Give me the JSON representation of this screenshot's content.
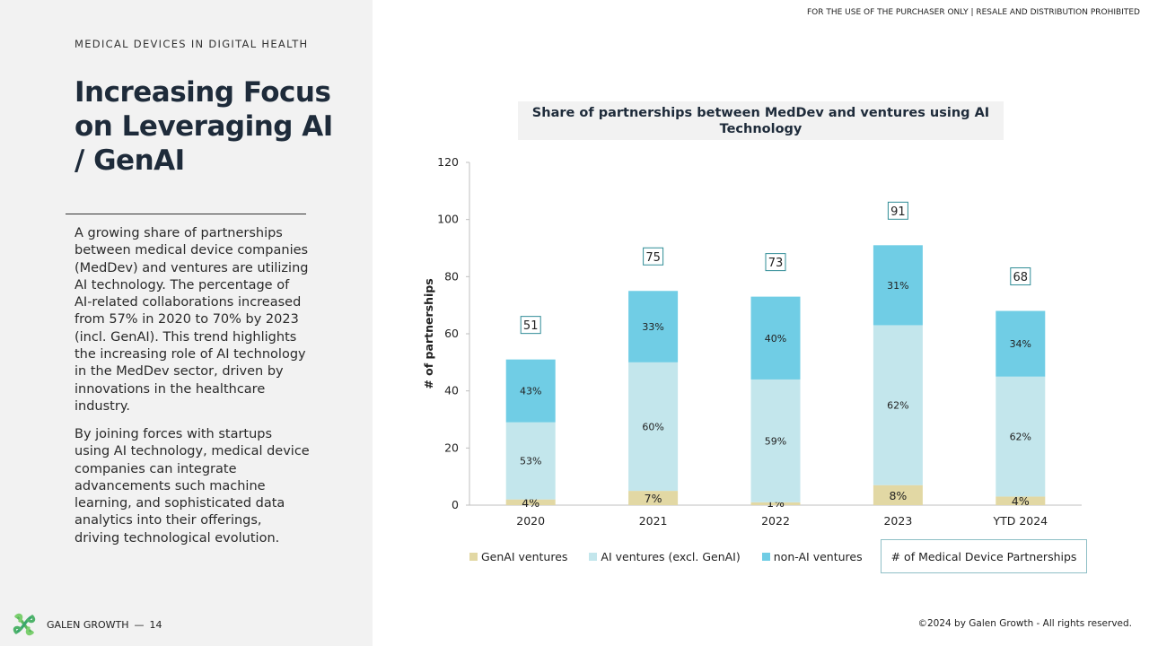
{
  "header": {
    "notice": "FOR THE USE OF THE PURCHASER ONLY | RESALE AND DISTRIBUTION PROHIBITED"
  },
  "left": {
    "kicker": "MEDICAL DEVICES IN DIGITAL HEALTH",
    "title": "Increasing Focus on Leveraging AI / GenAI",
    "paragraph1": "A growing share of partnerships between medical device companies (MedDev) and ventures are utilizing AI technology. The percentage of AI-related collaborations increased from 57% in 2020 to 70% by 2023 (incl. GenAI). This trend highlights the increasing role of AI technology in the MedDev sector, driven by innovations in the healthcare industry.",
    "paragraph2": "By joining forces with startups using AI technology, medical device companies can integrate advancements such machine learning, and sophisticated data analytics into their offerings, driving technological evolution."
  },
  "footer": {
    "brand": "GALEN GROWTH",
    "separator": "—",
    "page": "14",
    "copyright": "©2024 by Galen Growth  - All rights reserved."
  },
  "colors": {
    "left_bg": "#f2f2f2",
    "genai": "#e2d8a4",
    "ai_excl": "#c3e6ec",
    "non_ai": "#70cde5",
    "total_box_border": "#2f8c96"
  },
  "chart_data": {
    "type": "bar",
    "stacked": true,
    "title": "Share of partnerships between MedDev and ventures using AI Technology",
    "ylabel": "# of partnerships",
    "xlabel": "",
    "ylim": [
      0,
      120
    ],
    "yticks": [
      0,
      20,
      40,
      60,
      80,
      100,
      120
    ],
    "grid": false,
    "legend_position": "bottom",
    "categories": [
      "2020",
      "2021",
      "2022",
      "2023",
      "YTD 2024"
    ],
    "totals": [
      51,
      75,
      73,
      91,
      68
    ],
    "totals_legend": "# of Medical Device Partnerships",
    "series": [
      {
        "name": "GenAI ventures",
        "color": "#e2d8a4",
        "values": [
          2,
          5,
          1,
          7,
          3
        ],
        "labels": [
          "4%",
          "7%",
          "1%",
          "8%",
          "4%"
        ]
      },
      {
        "name": "AI ventures (excl. GenAI)",
        "color": "#c3e6ec",
        "values": [
          27,
          45,
          43,
          56,
          42
        ],
        "labels": [
          "53%",
          "60%",
          "59%",
          "62%",
          "62%"
        ]
      },
      {
        "name": "non-AI ventures",
        "color": "#70cde5",
        "values": [
          22,
          25,
          29,
          28,
          23
        ],
        "labels": [
          "43%",
          "33%",
          "40%",
          "31%",
          "34%"
        ]
      }
    ]
  }
}
